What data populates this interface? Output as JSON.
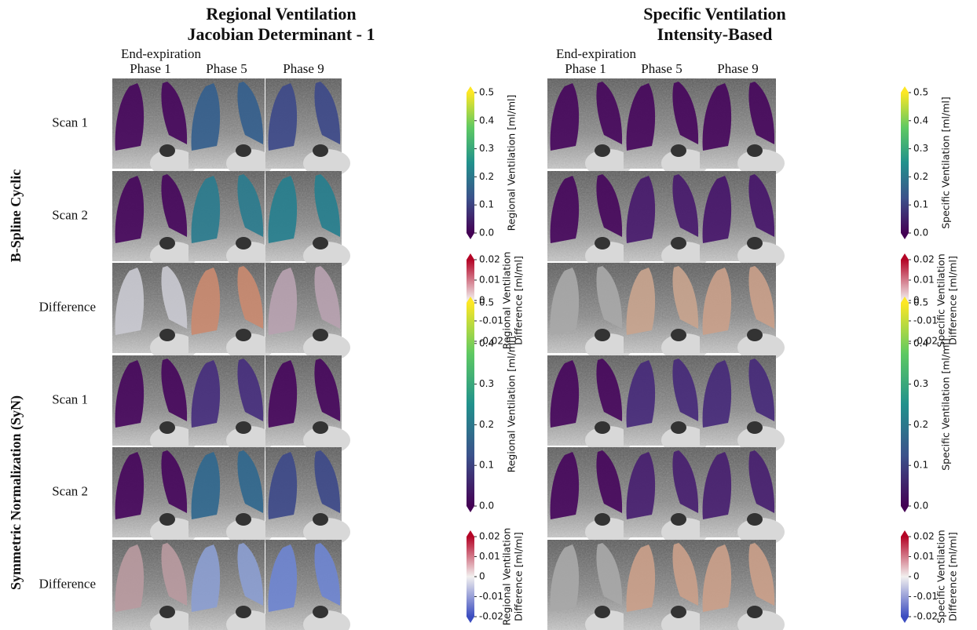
{
  "sides": [
    {
      "title_line1": "Regional Ventilation",
      "title_line2": "Jacobian Determinant - 1",
      "column_note": "End-expiration",
      "columns": [
        "Phase 1",
        "Phase 5",
        "Phase 9"
      ],
      "colorbar": {
        "label": "Regional Ventilation [ml/ml]",
        "ticks": [
          "0.0",
          "0.1",
          "0.2",
          "0.3",
          "0.4",
          "0.5"
        ]
      },
      "diff_colorbar": {
        "label_line1": "Regional Ventilation",
        "label_line2": "Difference [ml/ml]",
        "ticks": [
          "-0.02",
          "-0.01",
          "0",
          "0.01",
          "0.02"
        ]
      }
    },
    {
      "title_line1": "Specific Ventilation",
      "title_line2": "Intensity-Based",
      "column_note": "End-expiration",
      "columns": [
        "Phase 1",
        "Phase 5",
        "Phase 9"
      ],
      "colorbar": {
        "label": "Specific Ventilation [ml/ml]",
        "ticks": [
          "0.0",
          "0.1",
          "0.2",
          "0.3",
          "0.4",
          "0.5"
        ]
      },
      "diff_colorbar": {
        "label_line1": "Specific Ventilation",
        "label_line2": "Difference [ml/ml]",
        "ticks": [
          "-0.02",
          "-0.01",
          "0",
          "0.01",
          "0.02"
        ]
      }
    }
  ],
  "groups": [
    {
      "label": "B-Spline Cyclic",
      "rows": [
        "Scan 1",
        "Scan 2",
        "Difference"
      ]
    },
    {
      "label": "Symmetric Normalization (SyN)",
      "rows": [
        "Scan 1",
        "Scan 2",
        "Difference"
      ]
    }
  ]
}
